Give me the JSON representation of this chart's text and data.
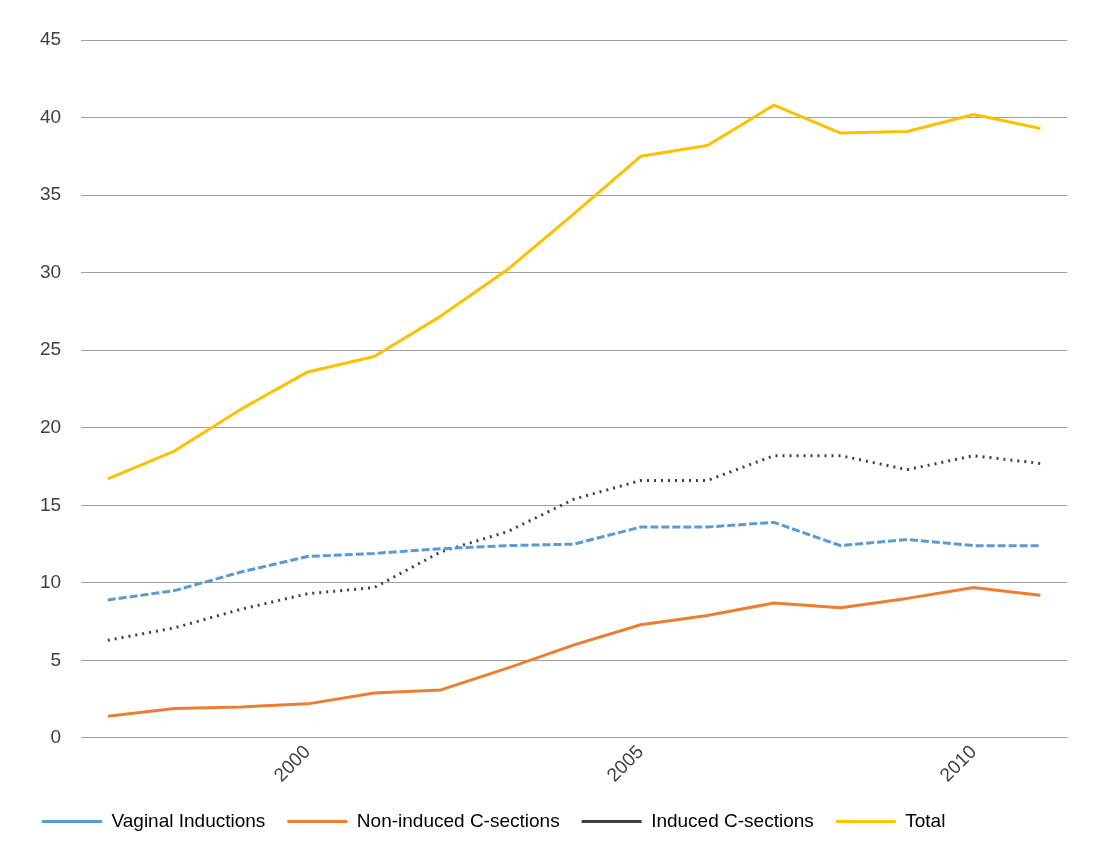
{
  "chart_data": {
    "type": "line",
    "x": [
      1997,
      1998,
      1999,
      2000,
      2001,
      2002,
      2003,
      2004,
      2005,
      2006,
      2007,
      2008,
      2009,
      2010,
      2011
    ],
    "xlim": [
      1996.6,
      2011.4
    ],
    "xticks": [
      2000,
      2005,
      2010
    ],
    "ylim": [
      0,
      45
    ],
    "yticks": [
      0,
      5,
      10,
      15,
      20,
      25,
      30,
      35,
      40,
      45
    ],
    "grid": "y",
    "legend": "bottom",
    "marker": "none",
    "series": [
      {
        "name": "Vaginal Inductions",
        "color": "#5b9bd5",
        "line_style": "dashed",
        "values": [
          8.9,
          9.5,
          10.7,
          11.7,
          11.9,
          12.2,
          12.4,
          12.5,
          13.6,
          13.6,
          13.9,
          12.4,
          12.8,
          12.4,
          12.4
        ]
      },
      {
        "name": "Non-induced C-sections",
        "color": "#ed7d31",
        "line_style": "solid",
        "values": [
          1.4,
          1.9,
          2.0,
          2.2,
          2.9,
          3.1,
          4.5,
          6.0,
          7.3,
          7.9,
          8.7,
          8.4,
          9.0,
          9.7,
          9.2
        ]
      },
      {
        "name": "Induced C-sections",
        "color": "#404040",
        "line_style": "dotted",
        "values": [
          6.3,
          7.1,
          8.3,
          9.3,
          9.7,
          12.0,
          13.3,
          15.4,
          16.6,
          16.6,
          18.2,
          18.2,
          17.3,
          18.2,
          17.7
        ]
      },
      {
        "name": "Total",
        "color": "#ffc000",
        "line_style": "solid",
        "values": [
          16.7,
          18.5,
          21.2,
          23.6,
          24.6,
          27.2,
          30.2,
          33.8,
          37.5,
          38.2,
          40.8,
          39.0,
          39.1,
          40.2,
          39.3
        ]
      }
    ]
  }
}
